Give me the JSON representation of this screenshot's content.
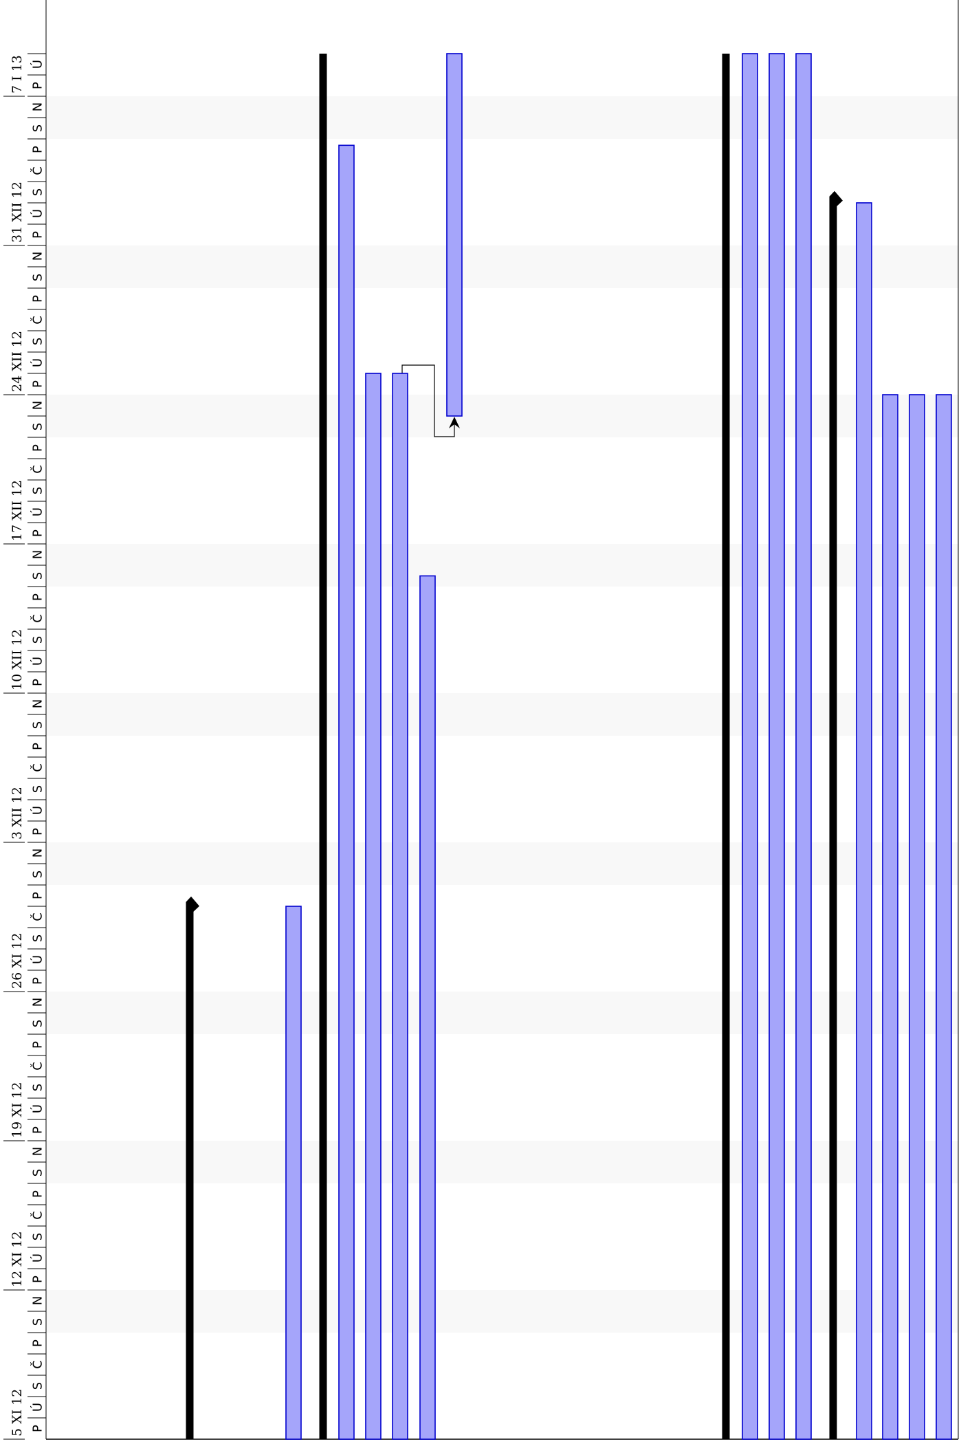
{
  "timeline": {
    "weeks": [
      "5 XI 12",
      "12 XI 12",
      "19 XI 12",
      "26 XI 12",
      "3 XII 12",
      "10 XII 12",
      "17 XII 12",
      "24 XII 12",
      "31 XII 12",
      "7 I 13"
    ],
    "weekdays": [
      "P",
      "Ú",
      "S",
      "Č",
      "P",
      "S",
      "N"
    ],
    "visible_days": 65,
    "weekend_shading": "#f8f8f8"
  },
  "colors": {
    "task_fill": "#a5a5fa",
    "task_stroke": "#0000cd",
    "summary": "#000000",
    "dependency": "#000000"
  },
  "tasks": [
    {
      "id": "summary-1",
      "kind": "summary",
      "start_day": 0,
      "end_day": 25.2,
      "milestone_end": true
    },
    {
      "id": "task-1",
      "kind": "task",
      "start_day": 0,
      "end_day": 25.0
    },
    {
      "id": "summary-2",
      "kind": "summary",
      "start_day": 0,
      "end_day": 65,
      "milestone_end": false
    },
    {
      "id": "task-2",
      "kind": "task",
      "start_day": 0,
      "end_day": 60.7
    },
    {
      "id": "task-3",
      "kind": "task",
      "start_day": 0,
      "end_day": 50.0
    },
    {
      "id": "task-4",
      "kind": "task",
      "start_day": 0,
      "end_day": 50.0
    },
    {
      "id": "task-5",
      "kind": "task",
      "start_day": 0,
      "end_day": 40.5
    },
    {
      "id": "task-6",
      "kind": "task",
      "start_day": 48.0,
      "end_day": 65
    },
    {
      "id": "summary-3",
      "kind": "summary",
      "start_day": 0,
      "end_day": 65,
      "milestone_end": false
    },
    {
      "id": "task-7",
      "kind": "task",
      "start_day": 0,
      "end_day": 65
    },
    {
      "id": "task-8",
      "kind": "task",
      "start_day": 0,
      "end_day": 65
    },
    {
      "id": "task-9",
      "kind": "task",
      "start_day": 0,
      "end_day": 65
    },
    {
      "id": "summary-4",
      "kind": "summary",
      "start_day": 0,
      "end_day": 58.3,
      "milestone_end": true
    },
    {
      "id": "task-10",
      "kind": "task",
      "start_day": 0,
      "end_day": 58.0
    },
    {
      "id": "task-11",
      "kind": "task",
      "start_day": 0,
      "end_day": 49.0
    },
    {
      "id": "task-12",
      "kind": "task",
      "start_day": 0,
      "end_day": 49.0
    },
    {
      "id": "task-13",
      "kind": "task",
      "start_day": 0,
      "end_day": 49.0
    }
  ],
  "dependencies": [
    {
      "from": "task-4",
      "to": "task-6"
    }
  ]
}
